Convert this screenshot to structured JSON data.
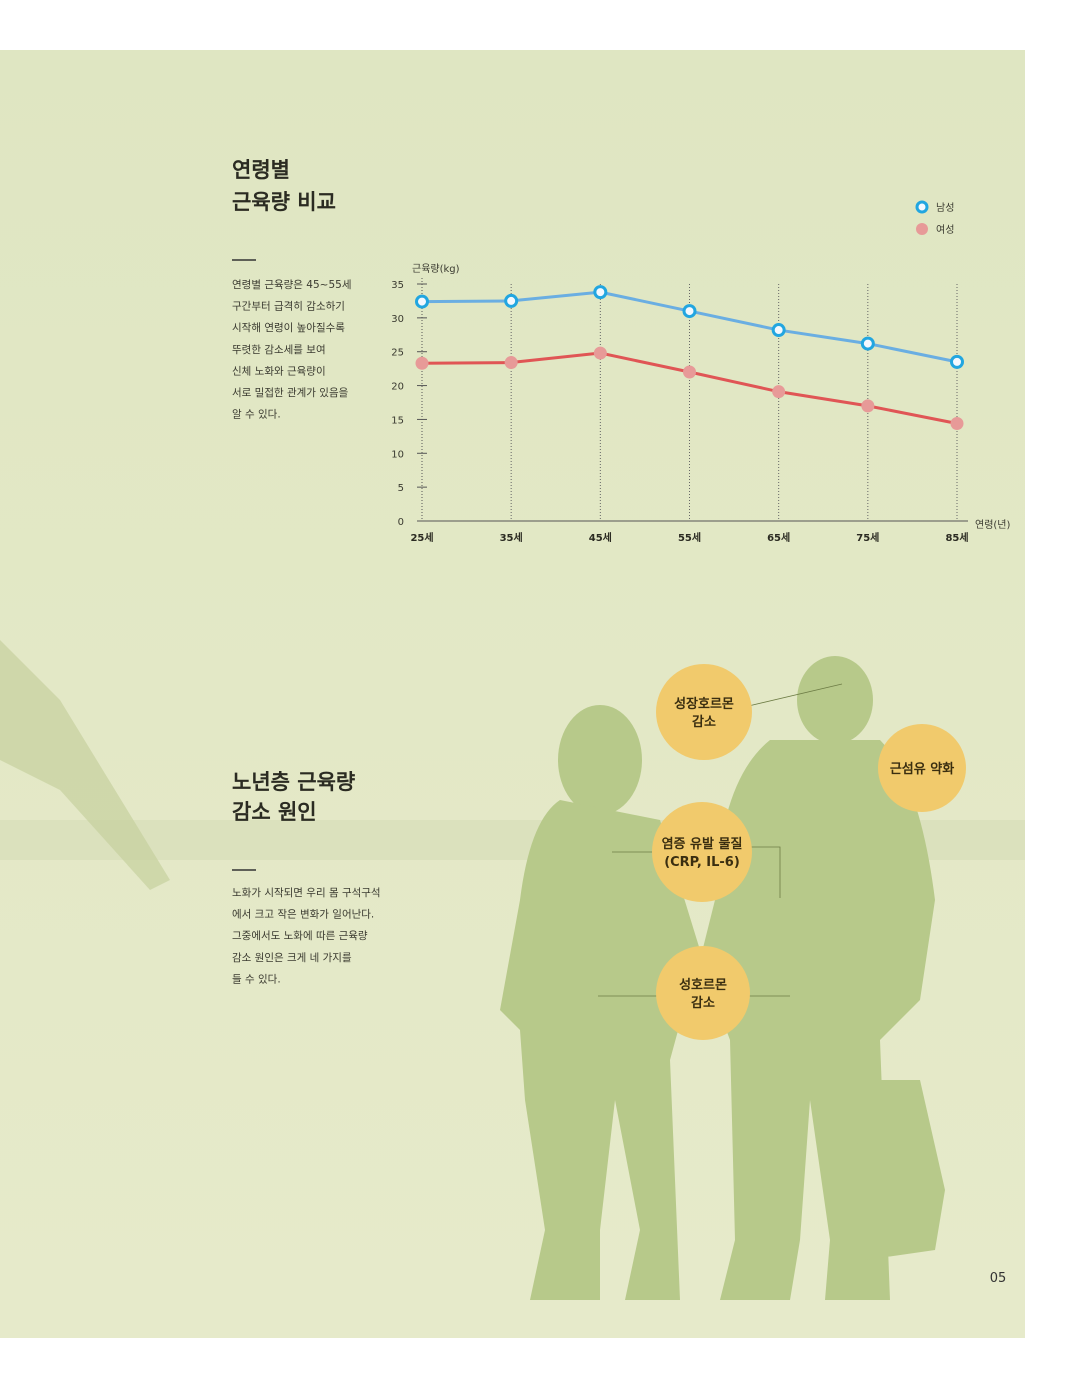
{
  "chart_data": {
    "type": "line",
    "y_label": "근육량(kg)",
    "x_label": "연령(년)",
    "categories": [
      "25세",
      "35세",
      "45세",
      "55세",
      "65세",
      "75세",
      "85세"
    ],
    "series": [
      {
        "name": "남성",
        "color": "#6aaee2",
        "marker_color": "#22a6e0",
        "values": [
          32.4,
          32.5,
          33.8,
          31.0,
          28.2,
          26.2,
          23.5
        ]
      },
      {
        "name": "여성",
        "color": "#e05555",
        "marker_color": "#e79a98",
        "values": [
          23.3,
          23.4,
          24.8,
          22.0,
          19.1,
          17.0,
          14.4
        ]
      }
    ],
    "ylim": [
      0,
      35
    ],
    "yticks": [
      0,
      5,
      10,
      15,
      20,
      25,
      30,
      35
    ],
    "grid": true
  },
  "section1": {
    "title": [
      "연령별",
      "근육량 비교"
    ],
    "body": [
      "연령별 근육량은 45~55세",
      "구간부터 급격히 감소하기",
      "시작해 연령이 높아질수록",
      "뚜렷한 감소세를 보여",
      "신체 노화와 근육량이",
      "서로 밀접한 관계가 있음을",
      "알 수 있다."
    ]
  },
  "section2": {
    "title": [
      "노년층 근육량",
      "감소 원인"
    ],
    "body": [
      "노화가 시작되면 우리 몸 구석구석",
      "에서 크고 작은 변화가 일어난다.",
      "그중에서도 노화에 따른 근육량",
      "감소 원인은 크게 네 가지를",
      "들 수 있다."
    ]
  },
  "causes": [
    [
      "성장호르몬",
      "감소"
    ],
    [
      "근섬유 약화"
    ],
    [
      "염증 유발 물질",
      "(CRP, IL-6)"
    ],
    [
      "성호르몬",
      "감소"
    ]
  ],
  "page_number": "05"
}
